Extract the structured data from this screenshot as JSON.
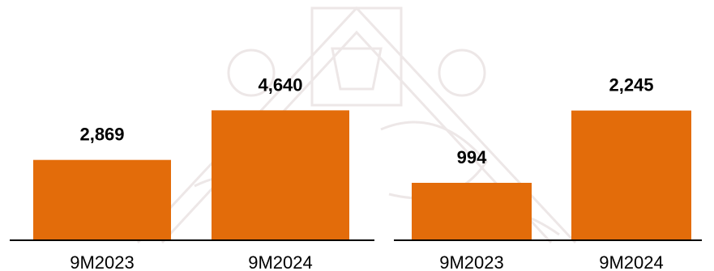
{
  "colors": {
    "bar": "#E36C0A",
    "axis": "#000000",
    "background": "#FFFFFF",
    "watermark": "#ede7e7"
  },
  "chart_data": [
    {
      "type": "bar",
      "categories": [
        "9M2023",
        "9M2024"
      ],
      "values": [
        2869,
        4640
      ],
      "value_labels": [
        "2,869",
        "4,640"
      ],
      "ylim": [
        0,
        5200
      ],
      "grid": false,
      "legend": "none"
    },
    {
      "type": "bar",
      "categories": [
        "9M2023",
        "9M2024"
      ],
      "values": [
        994,
        2245
      ],
      "value_labels": [
        "994",
        "2,245"
      ],
      "ylim": [
        0,
        2520
      ],
      "grid": false,
      "legend": "none"
    }
  ]
}
